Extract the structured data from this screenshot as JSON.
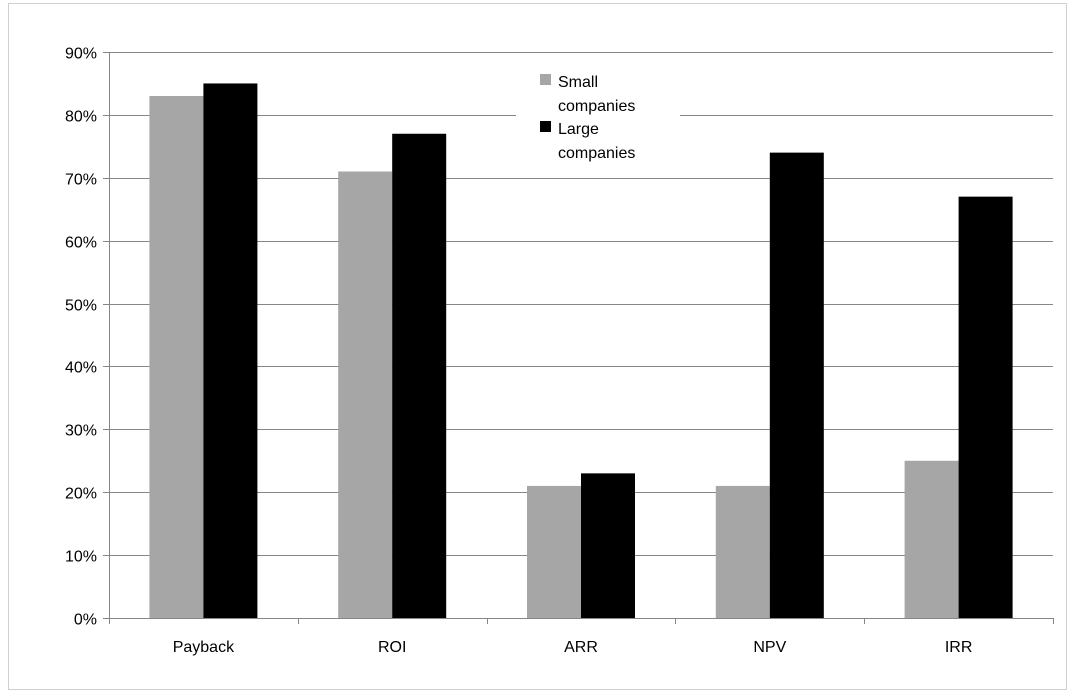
{
  "chart_data": {
    "type": "bar",
    "title": "",
    "xlabel": "",
    "ylabel": "",
    "categories": [
      "Payback",
      "ROI",
      "ARR",
      "NPV",
      "IRR"
    ],
    "series": [
      {
        "name": "Small companies",
        "values": [
          83,
          71,
          21,
          21,
          25
        ],
        "color": "#a6a6a6"
      },
      {
        "name": "Large companies",
        "values": [
          85,
          77,
          23,
          74,
          67
        ],
        "color": "#000000"
      }
    ],
    "ylim": [
      0,
      90
    ],
    "y_ticks": [
      0,
      10,
      20,
      30,
      40,
      50,
      60,
      70,
      80,
      90
    ],
    "y_tick_labels": [
      "0%",
      "10%",
      "20%",
      "30%",
      "40%",
      "50%",
      "60%",
      "70%",
      "80%",
      "90%"
    ],
    "grid": true,
    "legend_position": "top-center",
    "legend_lines": [
      [
        "Small",
        "companies"
      ],
      [
        "Large",
        "companies"
      ]
    ],
    "colors": {
      "axis": "#868686",
      "gridline": "#868686",
      "frame": "#d0d0d0"
    }
  }
}
